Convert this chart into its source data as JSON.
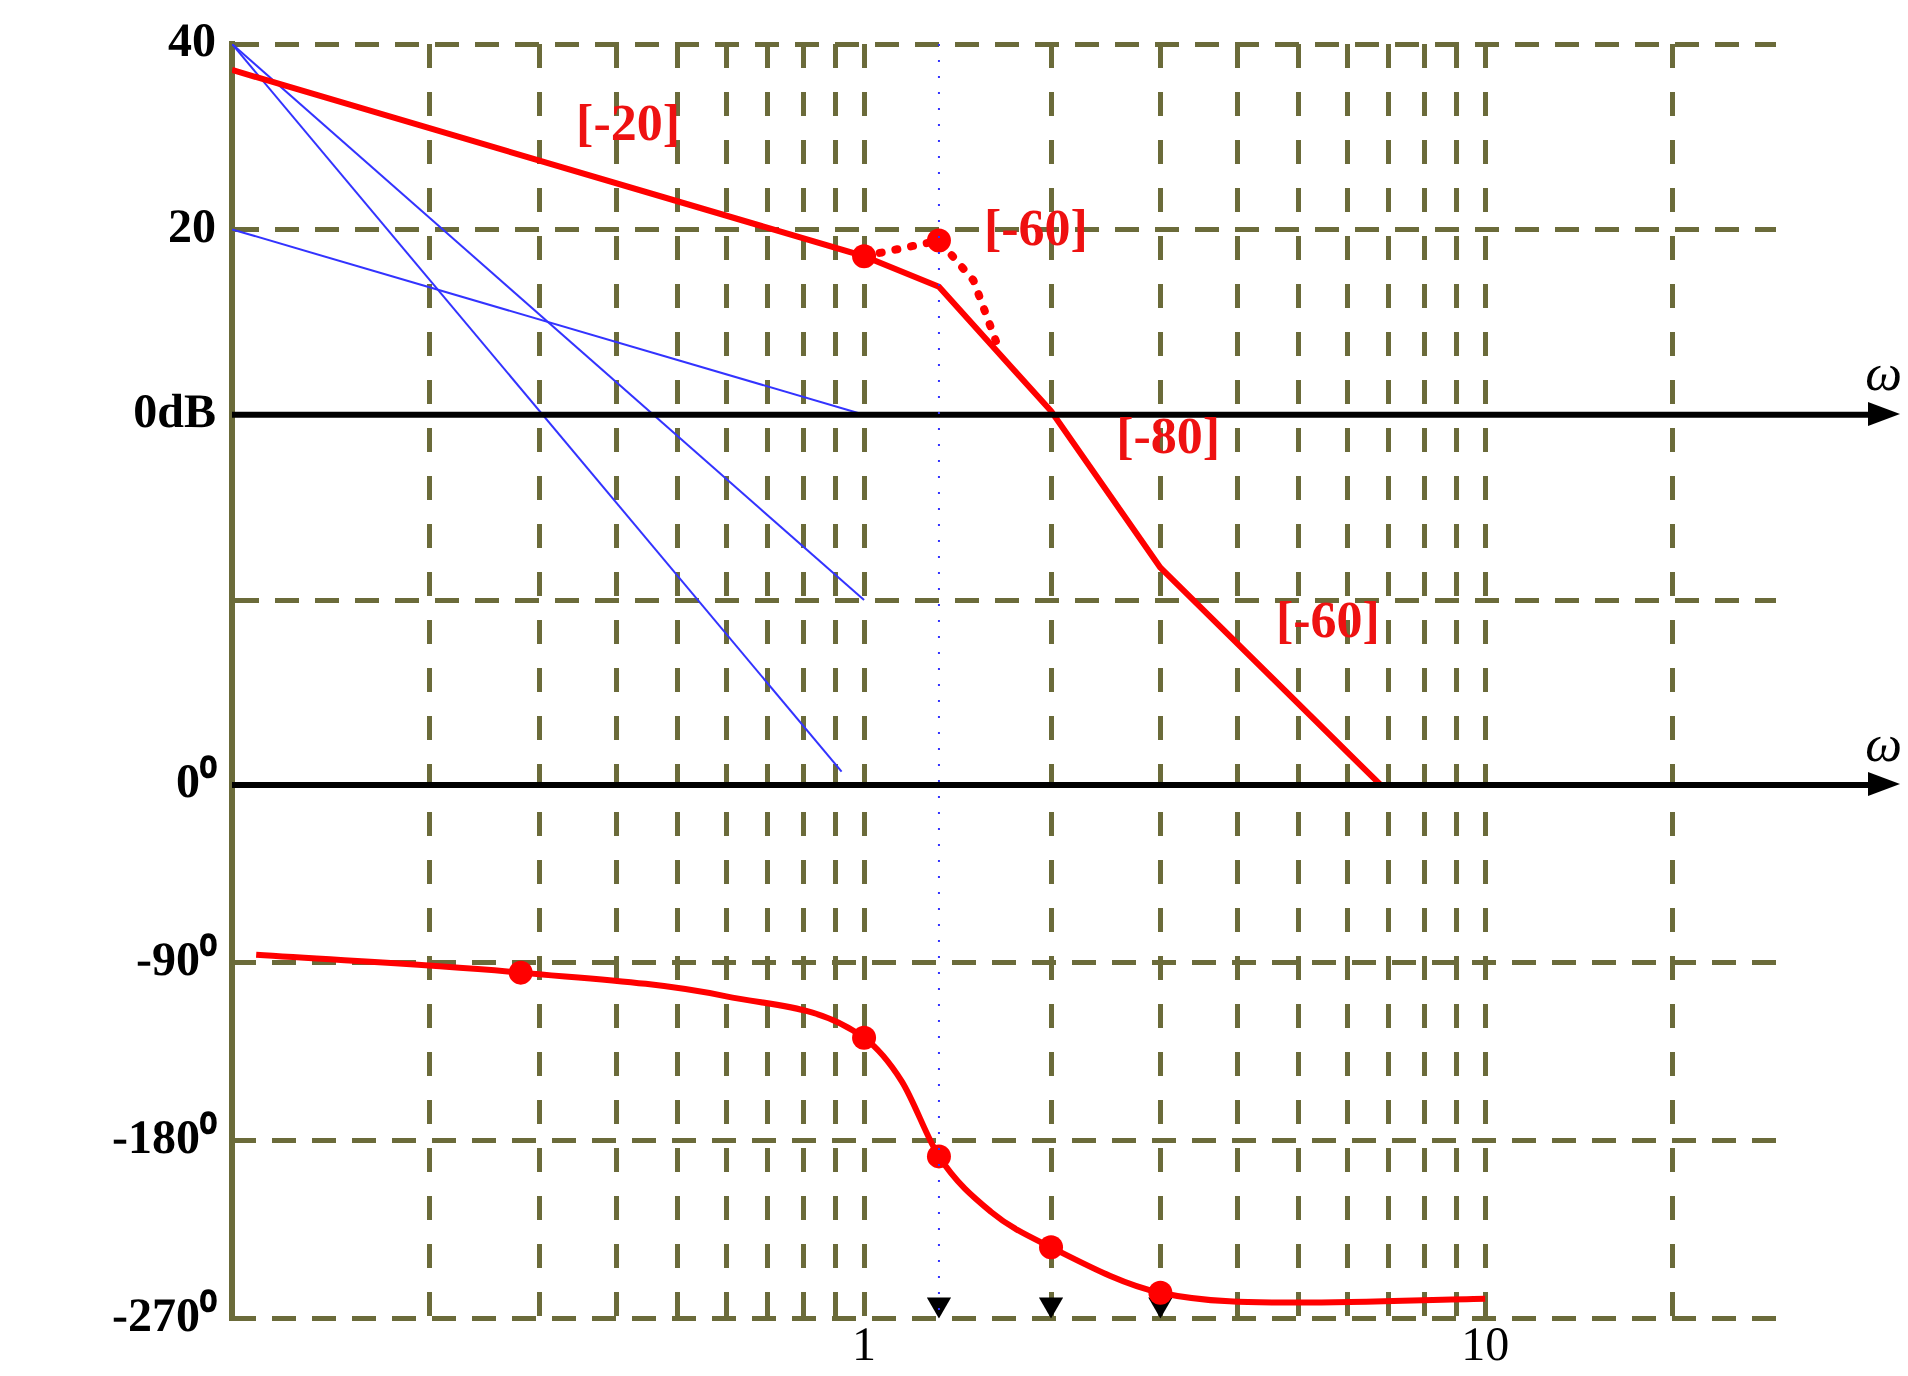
{
  "chart_data": {
    "type": "line",
    "log": "x",
    "grid": true,
    "xlim": [
      0.096,
      29.4
    ],
    "ylim": [
      -97.5,
      40
    ],
    "y2lim": [
      -270,
      375
    ],
    "xticks": [
      {
        "value": 0.2,
        "label": null
      },
      {
        "value": 0.3,
        "label": null
      },
      {
        "value": 0.4,
        "label": null
      },
      {
        "value": 0.5,
        "label": null
      },
      {
        "value": 0.6,
        "label": null
      },
      {
        "value": 0.7,
        "label": null
      },
      {
        "value": 0.8,
        "label": null
      },
      {
        "value": 0.9,
        "label": null
      },
      1,
      {
        "value": 2,
        "label": null
      },
      {
        "value": 3,
        "label": null
      },
      {
        "value": 4,
        "label": null
      },
      {
        "value": 5,
        "label": null
      },
      {
        "value": 6,
        "label": null
      },
      {
        "value": 7,
        "label": null
      },
      {
        "value": 8,
        "label": null
      },
      {
        "value": 9,
        "label": null
      },
      10,
      {
        "value": 20,
        "label": null
      }
    ],
    "yticks": [
      40,
      20,
      {
        "value": 0,
        "label": "0dB"
      },
      {
        "value": -20,
        "label": null
      }
    ],
    "y2ticks": [
      {
        "value": 0,
        "label": "0⁰"
      },
      {
        "value": -90,
        "label": "-90⁰"
      },
      {
        "value": -180,
        "label": "-180⁰"
      },
      {
        "value": -270,
        "label": "-270⁰"
      }
    ],
    "ref_lines": [
      {
        "axis": "y",
        "value": 0,
        "label": "ω",
        "color": "#000000"
      },
      {
        "axis": "y2",
        "value": 0,
        "label": "ω",
        "color": "#000000"
      },
      {
        "axis": "x",
        "value": 1.32,
        "color": "#3333ff",
        "line_style": "dotted"
      }
    ],
    "annotations": [
      {
        "text": "[-20]",
        "x": 0.324,
        "y": 26.6
      },
      {
        "text": "[-60]",
        "x": 1.47,
        "y": 15.2
      },
      {
        "text": "[-80]",
        "x": 2.4,
        "y": -7.2
      },
      {
        "text": "[-60]",
        "x": 4.34,
        "y": -27.1
      }
    ],
    "series": [
      {
        "type": "line",
        "color": "#ff0000",
        "axis": "y",
        "marker": "none",
        "line_style": "solid",
        "x": [
          0.096,
          1,
          1.32,
          2,
          3,
          6.8
        ],
        "values": [
          37.2,
          17.1,
          13.8,
          0.4,
          -16.5,
          -40
        ]
      },
      {
        "type": "line",
        "color": "#ff0000",
        "axis": "y",
        "marker": "none",
        "line_style": "dotted",
        "x": [
          1,
          1.32,
          1.5,
          1.65
        ],
        "values": [
          17.1,
          18.8,
          14.5,
          7
        ]
      },
      {
        "type": "line",
        "color": "#3333ff",
        "axis": "y",
        "marker": "none",
        "line_style": "solid",
        "x": [
          0.096,
          1
        ],
        "values": [
          20,
          0
        ]
      },
      {
        "type": "line",
        "color": "#3333ff",
        "axis": "y",
        "marker": "none",
        "line_style": "solid",
        "x": [
          0.096,
          1
        ],
        "values": [
          40,
          -20
        ]
      },
      {
        "type": "line",
        "color": "#3333ff",
        "axis": "y",
        "marker": "none",
        "line_style": "solid",
        "x": [
          0.096,
          0.92
        ],
        "values": [
          40,
          -38.5
        ]
      },
      {
        "type": "line",
        "color": "#ff0000",
        "axis": "y2",
        "marker": "none",
        "line_style": "solid",
        "x": [
          0.105,
          0.28,
          0.6,
          1,
          1.15,
          1.32,
          1.6,
          2,
          3,
          5,
          10
        ],
        "values": [
          -86,
          -95,
          -107,
          -128,
          -150,
          -188,
          -216,
          -234,
          -257,
          -262,
          -260
        ]
      },
      {
        "type": "scatter",
        "color": "#ff0000",
        "axis": "y",
        "marker": "circle",
        "x": [
          1,
          1.32
        ],
        "values": [
          17.1,
          18.8
        ]
      },
      {
        "type": "scatter",
        "color": "#ff0000",
        "axis": "y2",
        "marker": "circle",
        "x": [
          0.28,
          1,
          1.32,
          2,
          3
        ],
        "values": [
          -95,
          -128,
          -188,
          -234,
          -257
        ]
      },
      {
        "type": "scatter",
        "color": "#000000",
        "axis": "y2",
        "marker": "triangle",
        "x": [
          1.32,
          2,
          3
        ],
        "values": [
          -263,
          -263,
          -263
        ]
      }
    ]
  }
}
